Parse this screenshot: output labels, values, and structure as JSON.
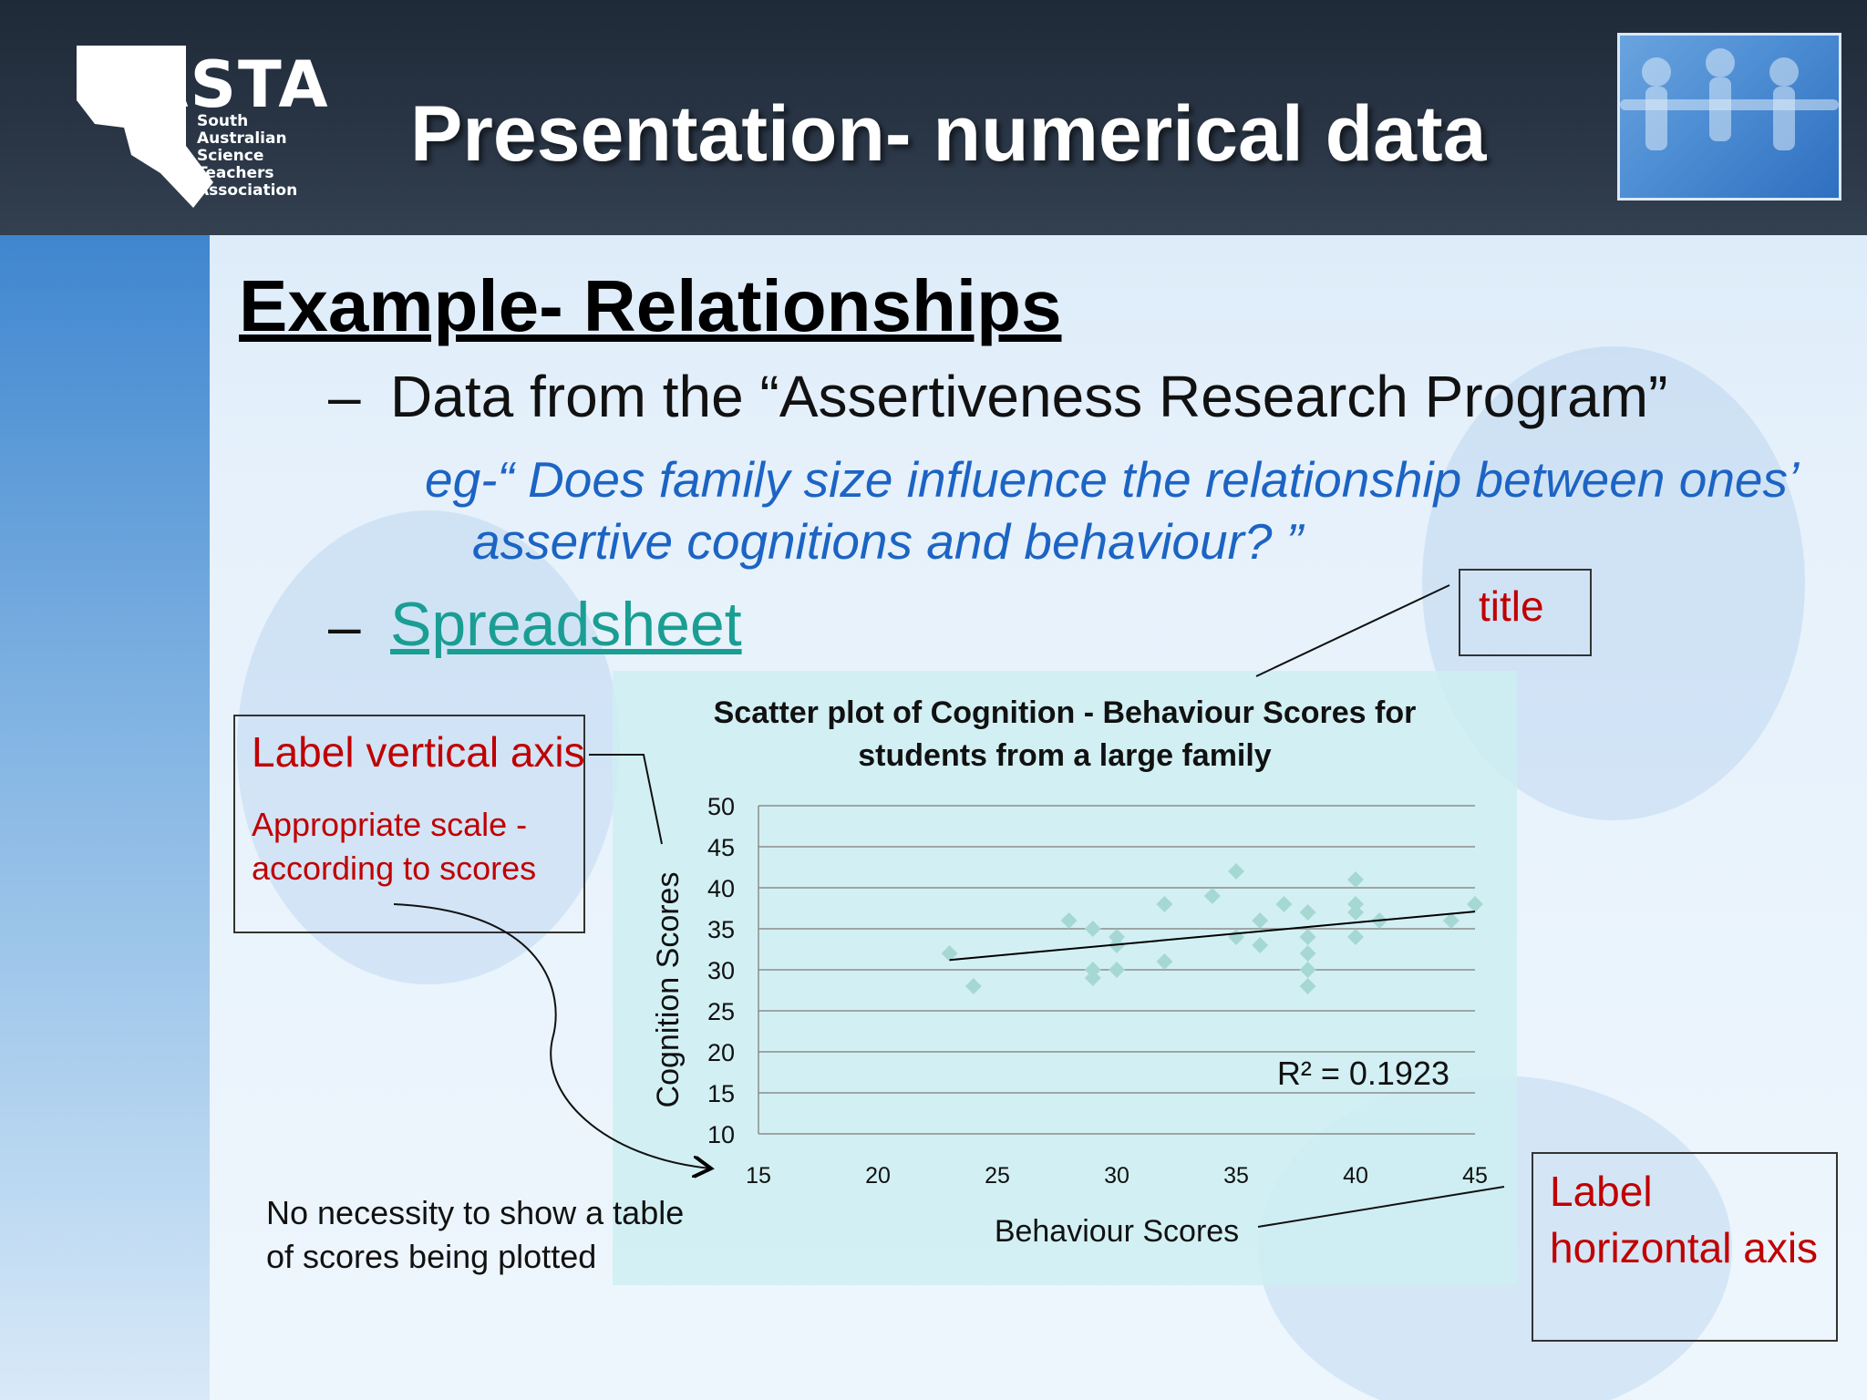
{
  "header": {
    "logo_text": "SASTA",
    "logo_lines": [
      "South",
      "Australian",
      "Science",
      "Teachers",
      "Association"
    ],
    "title": "Presentation- numerical data"
  },
  "content": {
    "heading": "Example- Relationships",
    "bullet_1": "Data from the “Assertiveness Research Program”",
    "question_line_1": "eg-“ Does family size influence the relationship between ones’",
    "question_line_2": "assertive cognitions and behaviour? ”",
    "bullet_2": "Spreadsheet",
    "dash": "–"
  },
  "callouts": {
    "title": "title",
    "vertical_axis": "Label vertical axis",
    "vertical_sub_1": "Appropriate scale -",
    "vertical_sub_2": "according to scores",
    "horizontal_1": "Label",
    "horizontal_2": "horizontal axis",
    "note_1": "No necessity to show a table",
    "note_2": "of scores being plotted"
  },
  "chart_data": {
    "type": "scatter",
    "title_line_1": "Scatter plot of Cognition - Behaviour Scores for",
    "title_line_2": "students from a large family",
    "xlabel": "Behaviour Scores",
    "ylabel": "Cognition Scores",
    "xlim": [
      15,
      45
    ],
    "ylim": [
      10,
      50
    ],
    "xticks": [
      15,
      20,
      25,
      30,
      35,
      40,
      45
    ],
    "yticks": [
      10,
      15,
      20,
      25,
      30,
      35,
      40,
      45,
      50
    ],
    "grid": "horizontal",
    "points": [
      {
        "x": 23,
        "y": 32
      },
      {
        "x": 24,
        "y": 28
      },
      {
        "x": 28,
        "y": 36
      },
      {
        "x": 29,
        "y": 35
      },
      {
        "x": 29,
        "y": 30
      },
      {
        "x": 29,
        "y": 29
      },
      {
        "x": 30,
        "y": 34
      },
      {
        "x": 30,
        "y": 33
      },
      {
        "x": 30,
        "y": 30
      },
      {
        "x": 32,
        "y": 38
      },
      {
        "x": 32,
        "y": 31
      },
      {
        "x": 34,
        "y": 39
      },
      {
        "x": 35,
        "y": 42
      },
      {
        "x": 35,
        "y": 34
      },
      {
        "x": 36,
        "y": 36
      },
      {
        "x": 36,
        "y": 33
      },
      {
        "x": 37,
        "y": 38
      },
      {
        "x": 38,
        "y": 37
      },
      {
        "x": 38,
        "y": 34
      },
      {
        "x": 38,
        "y": 32
      },
      {
        "x": 38,
        "y": 30
      },
      {
        "x": 38,
        "y": 28
      },
      {
        "x": 40,
        "y": 41
      },
      {
        "x": 40,
        "y": 38
      },
      {
        "x": 40,
        "y": 37
      },
      {
        "x": 40,
        "y": 34
      },
      {
        "x": 41,
        "y": 36
      },
      {
        "x": 44,
        "y": 36
      },
      {
        "x": 45,
        "y": 38
      }
    ],
    "trendline": {
      "x": [
        23,
        45
      ],
      "y": [
        31.2,
        37.1
      ]
    },
    "r_squared_label": "R² = 0.1923",
    "point_color": "#a6d8d3",
    "line_color": "#000000"
  }
}
